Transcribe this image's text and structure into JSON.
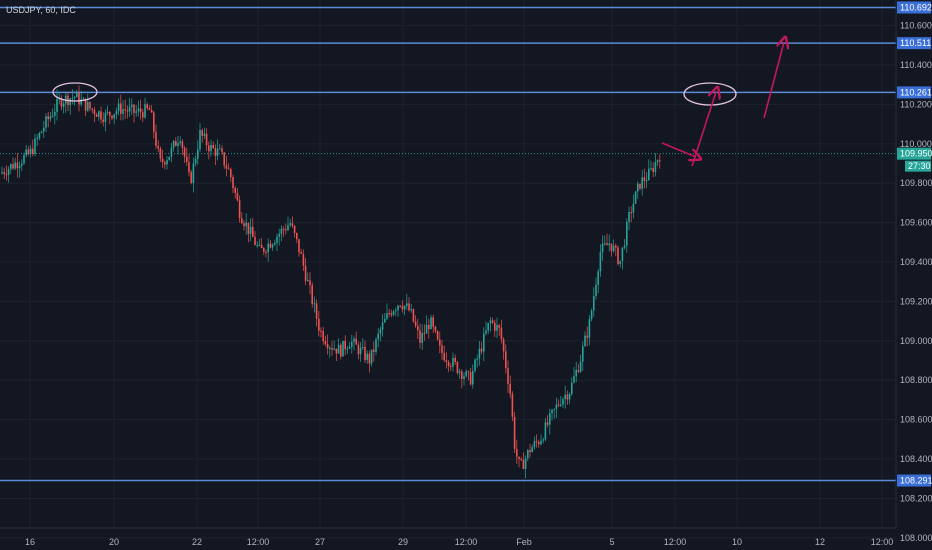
{
  "header": {
    "symbol_label": "USDJPY, 60, IDC"
  },
  "chart_data": {
    "type": "candlestick",
    "symbol": "USDJPY",
    "interval": "60",
    "source": "IDC",
    "ylim": [
      108.05,
      110.73
    ],
    "y_ticks": [
      "110.600",
      "110.400",
      "110.200",
      "110.000",
      "109.800",
      "109.600",
      "109.400",
      "109.200",
      "109.000",
      "108.800",
      "108.600",
      "108.400",
      "108.200",
      "108.000"
    ],
    "x_ticks": [
      "16",
      "20",
      "22",
      "12:00",
      "27",
      "29",
      "12:00",
      "Feb",
      "5",
      "12:00",
      "10",
      "12",
      "12:00"
    ],
    "horizontal_levels": [
      {
        "price": 110.692,
        "label": "110.692"
      },
      {
        "price": 110.511,
        "label": "110.511"
      },
      {
        "price": 110.261,
        "label": "110.261"
      },
      {
        "price": 108.291,
        "label": "108.291"
      }
    ],
    "last_price": {
      "price": 109.95,
      "label": "109.950",
      "countdown": "27:30"
    },
    "colors": {
      "up": "#26a69a",
      "down": "#ef5350",
      "level": "#5b8bd6",
      "arrow": "#c2185b",
      "ellipse": "#e0c0e0"
    },
    "candles_close_path": [
      [
        0,
        109.85
      ],
      [
        15,
        109.9
      ],
      [
        30,
        109.95
      ],
      [
        45,
        110.1
      ],
      [
        60,
        110.22
      ],
      [
        75,
        110.24
      ],
      [
        90,
        110.18
      ],
      [
        105,
        110.14
      ],
      [
        120,
        110.18
      ],
      [
        135,
        110.16
      ],
      [
        150,
        110.17
      ],
      [
        160,
        109.9
      ],
      [
        170,
        109.95
      ],
      [
        180,
        110.05
      ],
      [
        190,
        109.8
      ],
      [
        200,
        110.05
      ],
      [
        210,
        109.98
      ],
      [
        220,
        109.95
      ],
      [
        230,
        109.85
      ],
      [
        240,
        109.65
      ],
      [
        250,
        109.55
      ],
      [
        260,
        109.45
      ],
      [
        270,
        109.5
      ],
      [
        280,
        109.55
      ],
      [
        290,
        109.6
      ],
      [
        300,
        109.45
      ],
      [
        310,
        109.25
      ],
      [
        320,
        109.05
      ],
      [
        330,
        108.98
      ],
      [
        340,
        108.95
      ],
      [
        350,
        109.0
      ],
      [
        360,
        108.95
      ],
      [
        370,
        108.9
      ],
      [
        380,
        109.05
      ],
      [
        390,
        109.15
      ],
      [
        400,
        109.2
      ],
      [
        410,
        109.15
      ],
      [
        420,
        109.0
      ],
      [
        430,
        109.1
      ],
      [
        440,
        108.95
      ],
      [
        450,
        108.9
      ],
      [
        460,
        108.85
      ],
      [
        470,
        108.8
      ],
      [
        480,
        108.95
      ],
      [
        490,
        109.1
      ],
      [
        500,
        109.05
      ],
      [
        510,
        108.75
      ],
      [
        515,
        108.45
      ],
      [
        520,
        108.35
      ],
      [
        530,
        108.45
      ],
      [
        540,
        108.5
      ],
      [
        550,
        108.6
      ],
      [
        560,
        108.7
      ],
      [
        570,
        108.75
      ],
      [
        580,
        108.9
      ],
      [
        590,
        109.1
      ],
      [
        600,
        109.45
      ],
      [
        610,
        109.5
      ],
      [
        620,
        109.4
      ],
      [
        630,
        109.65
      ],
      [
        640,
        109.8
      ],
      [
        650,
        109.85
      ],
      [
        660,
        109.95
      ]
    ],
    "annotations": [
      {
        "type": "ellipse",
        "label": "high"
      },
      {
        "type": "ellipse",
        "label": "target"
      },
      {
        "type": "arrow",
        "label": "down-right"
      },
      {
        "type": "arrow",
        "label": "up"
      },
      {
        "type": "arrow",
        "label": "up"
      }
    ]
  }
}
